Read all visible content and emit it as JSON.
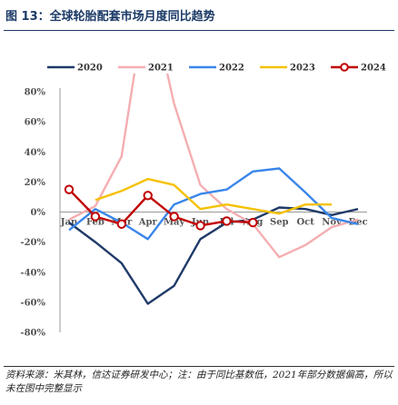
{
  "figure": {
    "title": "图 13：全球轮胎配套市场月度同比趋势",
    "source": "资料来源：米其林，信达证券研发中心；注：由于同比基数低，2021年部分数据偏高，所以未在图中完整显示"
  },
  "chart_data": {
    "type": "line",
    "categories": [
      "Jan",
      "Feb",
      "Mar",
      "Apr",
      "May",
      "Jun",
      "Jul",
      "Aug",
      "Sep",
      "Oct",
      "Nov",
      "Dec"
    ],
    "ylim": [
      -80,
      80
    ],
    "yticks": [
      80,
      60,
      40,
      20,
      0,
      -20,
      -40,
      -60,
      -80
    ],
    "ytick_labels": [
      "80%",
      "60%",
      "40%",
      "20%",
      "0%",
      "-20%",
      "-40%",
      "-60%",
      "-80%"
    ],
    "grid": false,
    "legend_position": "top",
    "series": [
      {
        "name": "2020",
        "color": "#1f3a68",
        "marker": false,
        "values": [
          -7,
          -20,
          -34,
          -61,
          -49,
          -18,
          -7,
          -5,
          3,
          2,
          -2,
          2
        ]
      },
      {
        "name": "2021",
        "color": "#f4aeb1",
        "marker": false,
        "values": [
          -5,
          4,
          37,
          150,
          72,
          18,
          2,
          -8,
          -30,
          -22,
          -10,
          -5
        ]
      },
      {
        "name": "2022",
        "color": "#3a86ea",
        "marker": false,
        "values": [
          -12,
          2,
          -7,
          -18,
          5,
          12,
          15,
          27,
          29,
          13,
          -4,
          -8
        ]
      },
      {
        "name": "2023",
        "color": "#f5c100",
        "marker": false,
        "values": [
          null,
          8,
          14,
          22,
          18,
          2,
          5,
          2,
          -1,
          5,
          5,
          null
        ]
      },
      {
        "name": "2024",
        "color": "#c00000",
        "marker": true,
        "values": [
          15,
          -3,
          -8,
          11,
          -3,
          -9,
          -6,
          -7,
          null,
          null,
          null,
          null
        ]
      }
    ]
  }
}
